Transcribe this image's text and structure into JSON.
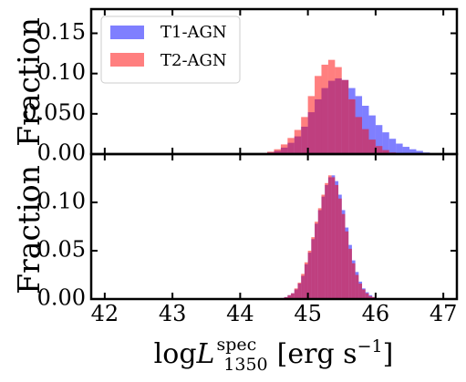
{
  "chart_data": [
    {
      "type": "histogram",
      "panel": "top",
      "ylabel": "Fraction",
      "ylim": [
        0,
        0.18
      ],
      "yticks": [
        "0.00",
        "0.050",
        "0.10",
        "0.15"
      ],
      "ytick_values": [
        0,
        0.05,
        0.1,
        0.15
      ],
      "xlim": [
        41.8,
        47.2
      ],
      "bin_width": 0.1,
      "legend": {
        "position": "upper-left",
        "entries": [
          "T1-AGN",
          "T2-AGN"
        ]
      },
      "series": [
        {
          "name": "T1-AGN",
          "color": "#0000ff",
          "bin_start": 44.4,
          "values": [
            0.002,
            0.004,
            0.008,
            0.014,
            0.022,
            0.034,
            0.052,
            0.068,
            0.082,
            0.091,
            0.094,
            0.092,
            0.082,
            0.072,
            0.06,
            0.048,
            0.036,
            0.027,
            0.019,
            0.013,
            0.009,
            0.006,
            0.004,
            0.002,
            0.001
          ]
        },
        {
          "name": "T2-AGN",
          "color": "#ff0000",
          "bin_start": 44.3,
          "values": [
            0.001,
            0.003,
            0.006,
            0.012,
            0.02,
            0.03,
            0.046,
            0.072,
            0.097,
            0.111,
            0.117,
            0.108,
            0.092,
            0.068,
            0.046,
            0.031,
            0.018,
            0.01,
            0.005,
            0.002,
            0.001
          ]
        }
      ]
    },
    {
      "type": "histogram",
      "panel": "bottom",
      "ylabel": "Fraction",
      "xlabel_text": "log",
      "xlabel_math": "L",
      "xlabel_sup": "spec",
      "xlabel_sub": "1350",
      "xlabel_unit_main": "[erg s",
      "xlabel_unit_sup": "−1",
      "xlabel_unit_close": "]",
      "ylim": [
        0,
        0.15
      ],
      "yticks": [
        "0.00",
        "0.05",
        "0.10"
      ],
      "ytick_values": [
        0,
        0.05,
        0.1
      ],
      "xlim": [
        41.8,
        47.2
      ],
      "xticks": [
        "42",
        "43",
        "44",
        "45",
        "46",
        "47"
      ],
      "xtick_values": [
        42,
        43,
        44,
        45,
        46,
        47
      ],
      "bin_width": 0.05,
      "series": [
        {
          "name": "T1-AGN",
          "color": "#0000ff",
          "bin_start": 44.6,
          "values": [
            0.001,
            0.002,
            0.004,
            0.006,
            0.01,
            0.016,
            0.024,
            0.036,
            0.048,
            0.062,
            0.078,
            0.092,
            0.106,
            0.118,
            0.126,
            0.128,
            0.122,
            0.108,
            0.092,
            0.074,
            0.056,
            0.04,
            0.028,
            0.018,
            0.011,
            0.007,
            0.004,
            0.002,
            0.001
          ]
        },
        {
          "name": "T2-AGN",
          "color": "#ff0000",
          "bin_start": 44.6,
          "values": [
            0.001,
            0.002,
            0.004,
            0.006,
            0.011,
            0.017,
            0.026,
            0.038,
            0.05,
            0.064,
            0.08,
            0.094,
            0.108,
            0.12,
            0.128,
            0.126,
            0.118,
            0.104,
            0.088,
            0.07,
            0.052,
            0.037,
            0.025,
            0.016,
            0.01,
            0.006,
            0.003,
            0.002,
            0.001
          ]
        }
      ]
    }
  ]
}
